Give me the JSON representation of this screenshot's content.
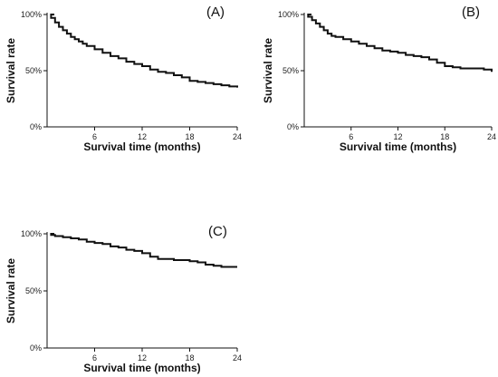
{
  "chart_data": [
    {
      "type": "line",
      "step": true,
      "panel_label": "(A)",
      "xlabel": "Survival time (months)",
      "ylabel": "Survival rate",
      "xlim": [
        0,
        24
      ],
      "ylim": [
        0,
        100
      ],
      "xticks": [
        6,
        12,
        18,
        24
      ],
      "yticks": [
        0,
        50,
        100
      ],
      "ytick_labels": [
        "0%",
        "50%",
        "100%"
      ],
      "grid": false,
      "series": [
        {
          "x": [
            0,
            0.5,
            1,
            1.5,
            2,
            2.5,
            3,
            3.5,
            4,
            4.5,
            5,
            6,
            7,
            8,
            9,
            10,
            11,
            12,
            13,
            14,
            15,
            16,
            17,
            18,
            19,
            20,
            21,
            22,
            23,
            24
          ],
          "y": [
            100,
            97,
            93,
            89,
            86,
            83,
            80,
            78,
            76,
            74,
            72,
            69,
            66,
            63,
            61,
            58,
            56,
            54,
            51,
            49,
            48,
            46,
            44,
            41,
            40,
            39,
            38,
            37,
            36,
            35
          ]
        }
      ]
    },
    {
      "type": "line",
      "step": true,
      "panel_label": "(B)",
      "xlabel": "Survival time (months)",
      "ylabel": "Survival rate",
      "xlim": [
        0,
        24
      ],
      "ylim": [
        0,
        100
      ],
      "xticks": [
        6,
        12,
        18,
        24
      ],
      "yticks": [
        0,
        50,
        100
      ],
      "ytick_labels": [
        "0%",
        "50%",
        "100%"
      ],
      "grid": false,
      "series": [
        {
          "x": [
            0,
            0.5,
            1,
            1.5,
            2,
            2.5,
            3,
            3.5,
            4,
            5,
            6,
            7,
            8,
            9,
            10,
            11,
            12,
            13,
            14,
            15,
            16,
            17,
            18,
            19,
            20,
            21,
            22,
            23,
            24
          ],
          "y": [
            100,
            98,
            95,
            92,
            89,
            86,
            83,
            81,
            80,
            78,
            76,
            74,
            72,
            70,
            68,
            67,
            66,
            64,
            63,
            62,
            60,
            57,
            54,
            53,
            52,
            52,
            52,
            51,
            49
          ]
        }
      ]
    },
    {
      "type": "line",
      "step": true,
      "panel_label": "(C)",
      "xlabel": "Survival time (months)",
      "ylabel": "Survival rate",
      "xlim": [
        0,
        24
      ],
      "ylim": [
        0,
        100
      ],
      "xticks": [
        6,
        12,
        18,
        24
      ],
      "yticks": [
        0,
        50,
        100
      ],
      "ytick_labels": [
        "0%",
        "50%",
        "100%"
      ],
      "grid": false,
      "series": [
        {
          "x": [
            0,
            0.5,
            1,
            2,
            3,
            4,
            5,
            6,
            7,
            8,
            9,
            10,
            11,
            12,
            13,
            14,
            15,
            16,
            17,
            18,
            19,
            20,
            21,
            22,
            23,
            24
          ],
          "y": [
            100,
            99,
            98,
            97,
            96,
            95,
            93,
            92,
            91,
            89,
            88,
            86,
            85,
            83,
            80,
            78,
            78,
            77,
            77,
            76,
            75,
            73,
            72,
            71,
            71,
            71
          ]
        }
      ]
    }
  ]
}
